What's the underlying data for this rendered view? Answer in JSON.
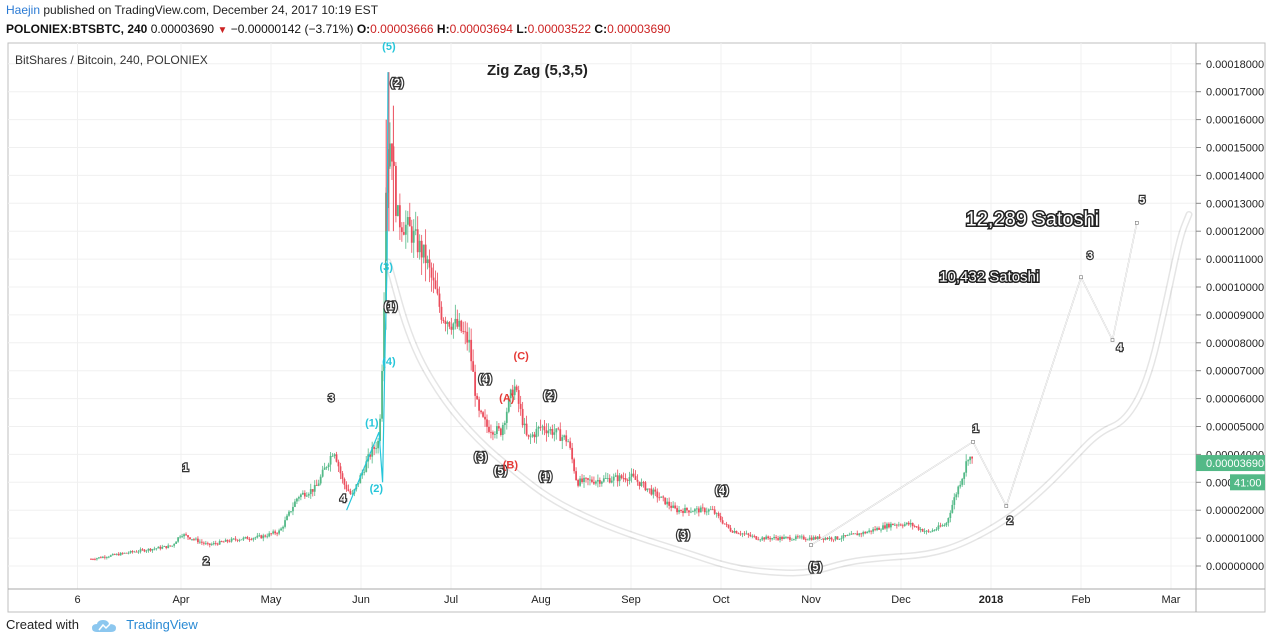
{
  "header": {
    "author": "Haejin",
    "published": " published on TradingView.com, December 24, 2017 10:19 EST",
    "symbol": "POLONIEX:BTSBTC, 240",
    "last": "0.00003690",
    "change": "−0.00000142 (−3.71%)",
    "open_label": "O:",
    "open": "0.00003666",
    "high_label": "H:",
    "high": "0.00003694",
    "low_label": "L:",
    "low": "0.00003522",
    "close_label": "C:",
    "close": "0.00003690"
  },
  "footer": {
    "created_with": "Created with",
    "brand": "TradingView"
  },
  "colors": {
    "up": "#53b987",
    "down": "#eb4d5c",
    "wave_cyan": "#26c6da",
    "wave_red": "#e53935",
    "price_badge": "#53b987"
  },
  "chart_data": {
    "type": "candlestick",
    "title": "BitShares / Bitcoin, 240, POLONIEX",
    "study": "Zig Zag (5,3,5)",
    "ylim": [
      -3e-06,
      0.000183
    ],
    "y_ticks": [
      "0.00018000",
      "0.00017000",
      "0.00016000",
      "0.00015000",
      "0.00014000",
      "0.00013000",
      "0.00012000",
      "0.00011000",
      "0.00010000",
      "0.00009000",
      "0.00008000",
      "0.00007000",
      "0.00006000",
      "0.00005000",
      "0.00004000",
      "0.00003000",
      "0.00002000",
      "0.00001000",
      "0.00000000"
    ],
    "x_ticks": [
      {
        "label": "6",
        "t": -0.15
      },
      {
        "label": "Apr",
        "t": 1
      },
      {
        "label": "May",
        "t": 2
      },
      {
        "label": "Jun",
        "t": 3
      },
      {
        "label": "Jul",
        "t": 4
      },
      {
        "label": "Aug",
        "t": 5
      },
      {
        "label": "Sep",
        "t": 6
      },
      {
        "label": "Oct",
        "t": 7
      },
      {
        "label": "Nov",
        "t": 8
      },
      {
        "label": "Dec",
        "t": 9
      },
      {
        "label": "2018",
        "t": 10
      },
      {
        "label": "Feb",
        "t": 11
      },
      {
        "label": "Mar",
        "t": 12
      }
    ],
    "price_badge": "0.00003690",
    "countdown_badge": {
      "prefix": "0.000",
      "timer": "41:00"
    },
    "price_path": [
      [
        0,
        2.5e-06
      ],
      [
        0.45,
        5e-06
      ],
      [
        0.9,
        7.2e-06
      ],
      [
        1.0,
        1.15e-05
      ],
      [
        1.3,
        7.5e-06
      ],
      [
        1.6,
        9.5e-06
      ],
      [
        1.9,
        1.05e-05
      ],
      [
        2.1,
        1.25e-05
      ],
      [
        2.3,
        2.5e-05
      ],
      [
        2.5,
        2.8e-05
      ],
      [
        2.7,
        4.2e-05
      ],
      [
        2.8,
        3e-05
      ],
      [
        2.9,
        2.5e-05
      ],
      [
        3.1,
        4e-05
      ],
      [
        3.2,
        4.5e-05
      ],
      [
        3.25,
        8.5e-05
      ],
      [
        3.28,
        0.00014
      ],
      [
        3.33,
        0.000155
      ],
      [
        3.4,
        0.000125
      ],
      [
        3.55,
        0.00012
      ],
      [
        3.72,
        0.00011
      ],
      [
        3.9,
        9e-05
      ],
      [
        4.1,
        8.5e-05
      ],
      [
        4.2,
        8e-05
      ],
      [
        4.3,
        5.5e-05
      ],
      [
        4.4,
        5e-05
      ],
      [
        4.55,
        4.8e-05
      ],
      [
        4.7,
        6.5e-05
      ],
      [
        4.85,
        4.5e-05
      ],
      [
        5.0,
        5e-05
      ],
      [
        5.15,
        4.8e-05
      ],
      [
        5.3,
        4.5e-05
      ],
      [
        5.4,
        3e-05
      ],
      [
        5.7,
        3.1e-05
      ],
      [
        6.0,
        3.2e-05
      ],
      [
        6.3,
        2.5e-05
      ],
      [
        6.5,
        2e-05
      ],
      [
        6.9,
        2e-05
      ],
      [
        7.1,
        1.3e-05
      ],
      [
        7.4,
        1e-05
      ],
      [
        7.7,
        1e-05
      ],
      [
        8.0,
        1e-05
      ],
      [
        8.3,
        1e-05
      ],
      [
        8.6,
        1.2e-05
      ],
      [
        8.9,
        1.5e-05
      ],
      [
        9.1,
        1.5e-05
      ],
      [
        9.3,
        1.2e-05
      ],
      [
        9.5,
        1.5e-05
      ],
      [
        9.6,
        2.5e-05
      ],
      [
        9.7,
        3.4e-05
      ],
      [
        9.75,
        4e-05
      ],
      [
        9.8,
        3.69e-05
      ]
    ],
    "wave_labels": [
      {
        "text": "1",
        "t": 1.05,
        "v": 3.4e-05,
        "color": "white"
      },
      {
        "text": "2",
        "t": 1.28,
        "v": 5e-07,
        "color": "white"
      },
      {
        "text": "3",
        "t": 2.67,
        "v": 5.9e-05,
        "color": "white"
      },
      {
        "text": "4",
        "t": 2.8,
        "v": 2.3e-05,
        "color": "white"
      },
      {
        "text": "(1)",
        "t": 3.12,
        "v": 5e-05,
        "color": "cyan"
      },
      {
        "text": "(2)",
        "t": 3.17,
        "v": 2.65e-05,
        "color": "cyan"
      },
      {
        "text": "(3)",
        "t": 3.28,
        "v": 0.000106,
        "color": "cyan"
      },
      {
        "text": "(4)",
        "t": 3.31,
        "v": 7.2e-05,
        "color": "cyan"
      },
      {
        "text": "(5)",
        "t": 3.31,
        "v": 0.000185,
        "color": "cyan"
      },
      {
        "text": "(2)",
        "t": 3.4,
        "v": 0.000172,
        "color": "white"
      },
      {
        "text": "(1)",
        "t": 3.33,
        "v": 9.2e-05,
        "color": "white"
      },
      {
        "text": "(4)",
        "t": 4.38,
        "v": 6.6e-05,
        "color": "white"
      },
      {
        "text": "(3)",
        "t": 4.33,
        "v": 3.8e-05,
        "color": "white"
      },
      {
        "text": "(5)",
        "t": 4.55,
        "v": 3.3e-05,
        "color": "white"
      },
      {
        "text": "(A)",
        "t": 4.62,
        "v": 5.9e-05,
        "color": "red"
      },
      {
        "text": "(B)",
        "t": 4.66,
        "v": 3.5e-05,
        "color": "red"
      },
      {
        "text": "(C)",
        "t": 4.78,
        "v": 7.4e-05,
        "color": "red"
      },
      {
        "text": "(1)",
        "t": 5.05,
        "v": 3.1e-05,
        "color": "white"
      },
      {
        "text": "(2)",
        "t": 5.1,
        "v": 6e-05,
        "color": "white"
      },
      {
        "text": "(3)",
        "t": 6.58,
        "v": 1e-05,
        "color": "white"
      },
      {
        "text": "(4)",
        "t": 7.01,
        "v": 2.6e-05,
        "color": "white"
      },
      {
        "text": "(5)",
        "t": 8.05,
        "v": -1.5e-06,
        "color": "white"
      },
      {
        "text": "1",
        "t": 9.83,
        "v": 4.8e-05,
        "color": "white"
      },
      {
        "text": "2",
        "t": 10.21,
        "v": 1.5e-05,
        "color": "white"
      },
      {
        "text": "3",
        "t": 11.1,
        "v": 0.00011,
        "color": "white"
      },
      {
        "text": "4",
        "t": 11.43,
        "v": 7.7e-05,
        "color": "white"
      },
      {
        "text": "5",
        "t": 11.68,
        "v": 0.00013,
        "color": "white"
      }
    ],
    "annotations": [
      {
        "text": "Zig Zag (5,3,5)",
        "t": 4.96,
        "v": 0.000176,
        "size": 15,
        "weight": "bold"
      },
      {
        "text": "12,289 Satoshi",
        "t": 10.46,
        "v": 0.000122,
        "size": 20,
        "weight": "normal"
      },
      {
        "text": "10,432 Satoshi",
        "t": 9.98,
        "v": 0.000102,
        "size": 15,
        "weight": "normal"
      }
    ],
    "zigzag_cyan": [
      [
        2.84,
        2e-05
      ],
      [
        3.2,
        4.8e-05
      ],
      [
        3.24,
        3e-05
      ],
      [
        3.27,
        8.2e-05
      ],
      [
        3.29,
        0.000108
      ],
      [
        3.3,
        0.000177
      ]
    ],
    "projection": [
      [
        8.0,
        7.5e-06
      ],
      [
        9.8,
        4.45e-05
      ],
      [
        10.17,
        2.15e-05
      ],
      [
        11.0,
        0.0001035
      ],
      [
        11.35,
        8.1e-05
      ],
      [
        11.62,
        0.000123
      ]
    ],
    "bowl_curve": [
      [
        3.3,
        0.000109
      ],
      [
        3.55,
        8e-05
      ],
      [
        3.9,
        6e-05
      ],
      [
        4.3,
        4.5e-05
      ],
      [
        4.7,
        3.4e-05
      ],
      [
        5.1,
        2.4e-05
      ],
      [
        5.6,
        1.6e-05
      ],
      [
        6.1,
        1e-05
      ],
      [
        6.6,
        5e-06
      ],
      [
        7.1,
        -5e-07
      ],
      [
        7.6,
        -2.5e-06
      ],
      [
        8.0,
        -2.5e-06
      ],
      [
        8.4,
        1.5e-06
      ],
      [
        8.8,
        3e-06
      ],
      [
        9.3,
        4e-06
      ],
      [
        9.7,
        8e-06
      ],
      [
        10.2,
        1.7e-05
      ],
      [
        10.6,
        2.8e-05
      ],
      [
        10.9,
        3.8e-05
      ],
      [
        11.2,
        4.8e-05
      ],
      [
        11.5,
        5.2e-05
      ],
      [
        11.75,
        6.7e-05
      ],
      [
        11.95,
        9.5e-05
      ],
      [
        12.1,
        0.000118
      ],
      [
        12.2,
        0.000126
      ]
    ]
  }
}
